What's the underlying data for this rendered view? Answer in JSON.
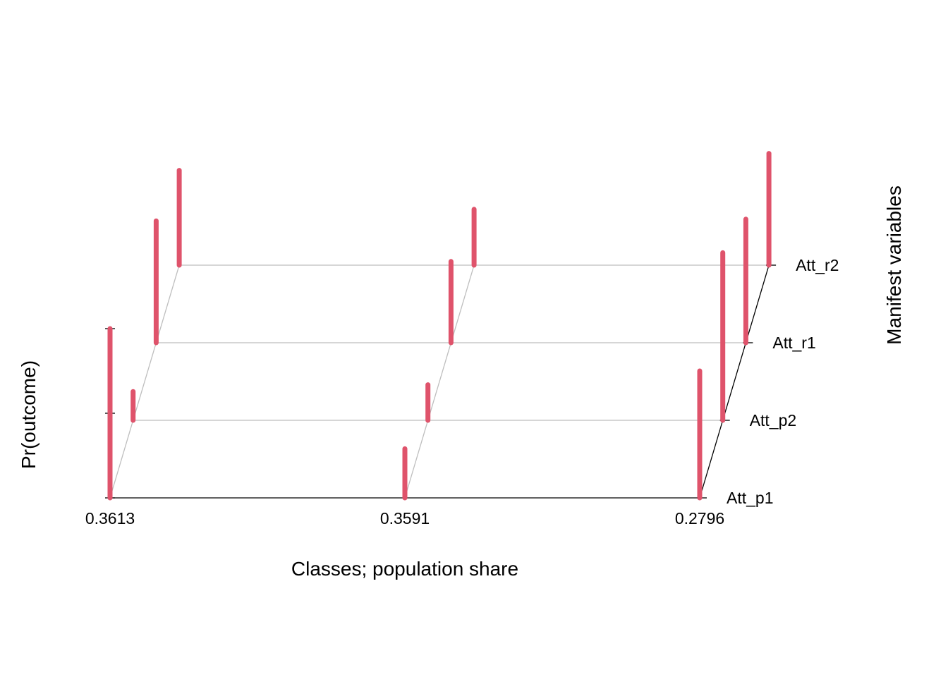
{
  "chart_data": {
    "type": "bar",
    "projection": "3d",
    "xlabel": "Classes; population share",
    "ylabel": "Manifest variables",
    "zlabel": "Pr(outcome)",
    "categories": [
      "0.3613",
      "0.3591",
      "0.2796"
    ],
    "variables": [
      "Att_p1",
      "Att_p2",
      "Att_r1",
      "Att_r2"
    ],
    "zlim": [
      0,
      1
    ],
    "values": [
      [
        1.0,
        0.17,
        0.72,
        0.56
      ],
      [
        0.29,
        0.21,
        0.48,
        0.33
      ],
      [
        0.75,
        0.99,
        0.73,
        0.66
      ]
    ],
    "bar_color": "#DF536B",
    "guide_color": "#BEBEBE",
    "axis_color": "#000000",
    "grid": false
  }
}
